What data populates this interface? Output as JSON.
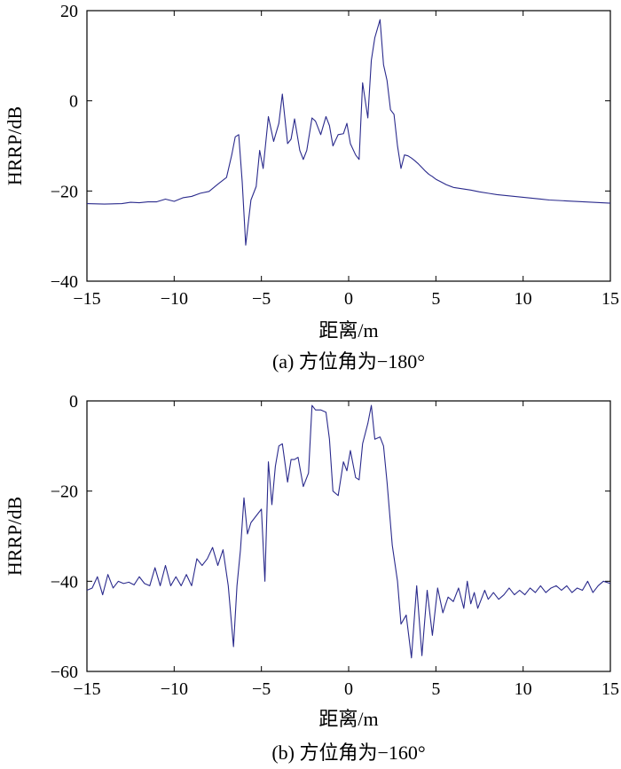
{
  "chart_data": [
    {
      "type": "line",
      "caption": "(a) 方位角为−180°",
      "xlabel": "距离/m",
      "ylabel": "HRRP/dB",
      "xlim": [
        -15,
        15
      ],
      "ylim": [
        -40,
        20
      ],
      "xticks": [
        -15,
        -10,
        -5,
        0,
        5,
        10,
        15
      ],
      "xtick_labels": [
        "−15",
        "−10",
        "−5",
        "0",
        "5",
        "10",
        "15"
      ],
      "yticks": [
        -40,
        -20,
        0,
        20
      ],
      "ytick_labels": [
        "−40",
        "−20",
        "0",
        "20"
      ],
      "grid": false,
      "color": "#2a2a8c",
      "series": [
        {
          "x": [
            -15,
            -14,
            -13,
            -12.5,
            -12,
            -11.5,
            -11,
            -10.5,
            -10,
            -9.5,
            -9,
            -8.5,
            -8,
            -7.5,
            -7,
            -6.7,
            -6.5,
            -6.3,
            -6.1,
            -5.9,
            -5.6,
            -5.3,
            -5.1,
            -4.9,
            -4.6,
            -4.3,
            -4.0,
            -3.8,
            -3.5,
            -3.3,
            -3.1,
            -2.8,
            -2.6,
            -2.4,
            -2.1,
            -1.9,
            -1.6,
            -1.3,
            -1.1,
            -0.9,
            -0.6,
            -0.3,
            -0.1,
            0.1,
            0.4,
            0.6,
            0.8,
            1.1,
            1.3,
            1.5,
            1.8,
            2.0,
            2.2,
            2.4,
            2.6,
            2.8,
            3.0,
            3.2,
            3.4,
            3.6,
            3.8,
            4.0,
            4.2,
            4.4,
            4.6,
            4.8,
            5.0,
            5.3,
            5.6,
            6.0,
            6.5,
            7,
            7.5,
            8,
            8.5,
            9,
            9.5,
            10,
            10.5,
            11,
            11.5,
            12,
            12.5,
            13,
            13.5,
            14,
            14.5,
            15
          ],
          "y": [
            -22.8,
            -22.9,
            -22.8,
            -22.5,
            -22.6,
            -22.4,
            -22.4,
            -21.8,
            -22.3,
            -21.5,
            -21.2,
            -20.5,
            -20.1,
            -18.5,
            -17.0,
            -12.0,
            -8.0,
            -7.5,
            -18.0,
            -32.0,
            -22.0,
            -19.0,
            -11.0,
            -15.0,
            -3.5,
            -9.0,
            -5.0,
            1.5,
            -9.5,
            -8.5,
            -4.0,
            -11.0,
            -13.0,
            -11.0,
            -3.8,
            -4.5,
            -7.5,
            -3.5,
            -5.5,
            -10.0,
            -7.5,
            -7.3,
            -5.0,
            -9.5,
            -12.0,
            -13.0,
            4.0,
            -3.8,
            9.0,
            14.0,
            18.0,
            8.0,
            4.5,
            -2.0,
            -3.0,
            -10.0,
            -15.0,
            -12.0,
            -12.2,
            -12.7,
            -13.3,
            -14.0,
            -14.8,
            -15.6,
            -16.3,
            -16.8,
            -17.4,
            -18.0,
            -18.6,
            -19.2,
            -19.5,
            -19.8,
            -20.2,
            -20.5,
            -20.8,
            -21.0,
            -21.2,
            -21.4,
            -21.6,
            -21.8,
            -22.0,
            -22.1,
            -22.2,
            -22.3,
            -22.4,
            -22.5,
            -22.6,
            -22.7
          ]
        }
      ]
    },
    {
      "type": "line",
      "caption": "(b) 方位角为−160°",
      "xlabel": "距离/m",
      "ylabel": "HRRP/dB",
      "xlim": [
        -15,
        15
      ],
      "ylim": [
        -60,
        0
      ],
      "xticks": [
        -15,
        -10,
        -5,
        0,
        5,
        10,
        15
      ],
      "xtick_labels": [
        "−15",
        "−10",
        "−5",
        "0",
        "5",
        "10",
        "15"
      ],
      "yticks": [
        -60,
        -40,
        -20,
        0
      ],
      "ytick_labels": [
        "−60",
        "−40",
        "−20",
        "0"
      ],
      "grid": false,
      "color": "#2a2a8c",
      "series": [
        {
          "x": [
            -15,
            -14.7,
            -14.4,
            -14.1,
            -13.8,
            -13.5,
            -13.2,
            -12.9,
            -12.6,
            -12.3,
            -12.0,
            -11.7,
            -11.4,
            -11.1,
            -10.8,
            -10.5,
            -10.2,
            -9.9,
            -9.6,
            -9.3,
            -9.0,
            -8.7,
            -8.4,
            -8.1,
            -7.8,
            -7.5,
            -7.2,
            -6.9,
            -6.6,
            -6.4,
            -6.2,
            -6.0,
            -5.8,
            -5.6,
            -5.3,
            -5.0,
            -4.8,
            -4.6,
            -4.4,
            -4.2,
            -4.0,
            -3.8,
            -3.5,
            -3.3,
            -3.1,
            -2.9,
            -2.6,
            -2.3,
            -2.1,
            -1.9,
            -1.6,
            -1.3,
            -1.1,
            -0.9,
            -0.6,
            -0.3,
            -0.1,
            0.1,
            0.4,
            0.6,
            0.8,
            1.1,
            1.3,
            1.5,
            1.8,
            2.0,
            2.2,
            2.5,
            2.8,
            3.0,
            3.3,
            3.6,
            3.9,
            4.2,
            4.5,
            4.8,
            5.1,
            5.4,
            5.7,
            6.0,
            6.3,
            6.6,
            6.8,
            7.0,
            7.2,
            7.4,
            7.6,
            7.8,
            8.0,
            8.3,
            8.6,
            8.9,
            9.2,
            9.5,
            9.8,
            10.1,
            10.4,
            10.7,
            11.0,
            11.3,
            11.6,
            11.9,
            12.2,
            12.5,
            12.8,
            13.1,
            13.4,
            13.7,
            14.0,
            14.3,
            14.6,
            15.0
          ],
          "y": [
            -42.0,
            -41.5,
            -39.0,
            -43.0,
            -38.5,
            -41.5,
            -40.0,
            -40.5,
            -40.2,
            -40.8,
            -39.0,
            -40.5,
            -41.0,
            -37.0,
            -41.0,
            -36.5,
            -41.0,
            -39.0,
            -41.0,
            -38.5,
            -41.0,
            -35.0,
            -36.5,
            -35.0,
            -32.5,
            -36.5,
            -33.0,
            -41.0,
            -54.5,
            -41.0,
            -33.0,
            -21.5,
            -29.5,
            -27.0,
            -25.5,
            -24.0,
            -40.0,
            -13.5,
            -23.0,
            -14.5,
            -10.0,
            -9.5,
            -18.0,
            -13.0,
            -13.0,
            -12.5,
            -19.0,
            -16.0,
            -1.0,
            -2.0,
            -2.0,
            -2.5,
            -8.5,
            -20.0,
            -21.0,
            -13.5,
            -15.5,
            -11.0,
            -17.0,
            -17.5,
            -9.5,
            -5.0,
            -1.0,
            -8.5,
            -8.0,
            -10.0,
            -18.0,
            -32.0,
            -40.0,
            -49.5,
            -47.5,
            -57.0,
            -41.0,
            -56.5,
            -42.0,
            -52.0,
            -41.5,
            -47.0,
            -43.5,
            -44.5,
            -41.5,
            -46.0,
            -40.0,
            -45.0,
            -42.5,
            -46.0,
            -44.0,
            -42.0,
            -44.0,
            -42.5,
            -44.0,
            -43.0,
            -41.5,
            -43.0,
            -42.0,
            -43.0,
            -41.5,
            -42.5,
            -41.0,
            -42.5,
            -41.5,
            -41.0,
            -42.0,
            -41.0,
            -42.5,
            -41.5,
            -42.0,
            -40.0,
            -42.5,
            -41.0,
            -40.0,
            -40.5
          ]
        }
      ]
    }
  ]
}
